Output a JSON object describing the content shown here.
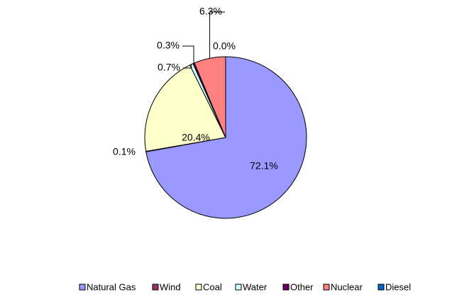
{
  "chart_data": {
    "type": "pie",
    "categories": [
      "Natural Gas",
      "Wind",
      "Coal",
      "Water",
      "Other",
      "Nuclear",
      "Diesel"
    ],
    "values": [
      72.1,
      0.1,
      20.4,
      0.7,
      0.3,
      6.3,
      0.0
    ],
    "value_labels": [
      "72.1%",
      "0.1%",
      "20.4%",
      "0.7%",
      "0.3%",
      "6.3%",
      "0.0%"
    ],
    "colors": [
      "#9999ff",
      "#993366",
      "#ffffcc",
      "#ccffff",
      "#660066",
      "#ff8080",
      "#0066cc"
    ],
    "legend": "bottom"
  }
}
